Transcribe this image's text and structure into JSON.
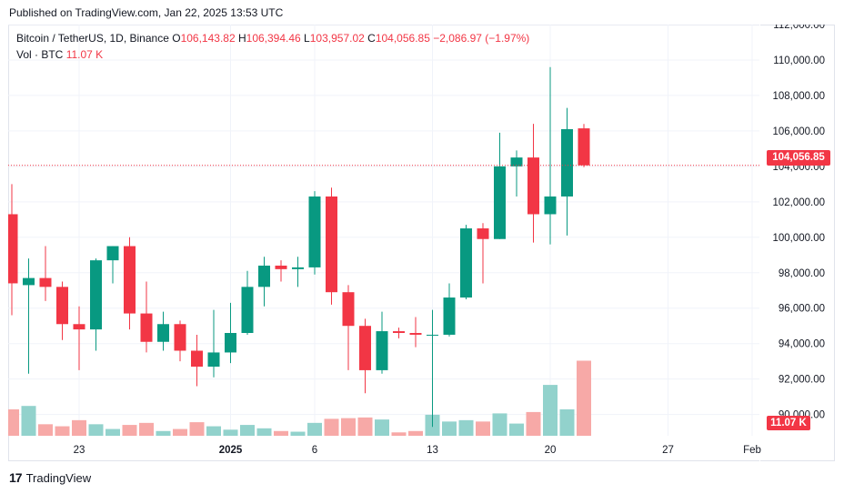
{
  "published": "Published on TradingView.com, Jan 22, 2025 13:53 UTC",
  "legend": {
    "symbol": "Bitcoin / TetherUS, 1D, Binance",
    "o_label": "O",
    "o": "106,143.82",
    "h_label": "H",
    "h": "106,394.46",
    "l_label": "L",
    "l": "103,957.02",
    "c_label": "C",
    "c": "104,056.85",
    "change": "−2,086.97 (−1.97%)"
  },
  "volume_line": {
    "label": "Vol · BTC",
    "value": "11.07 K"
  },
  "footer": {
    "brand": "TradingView",
    "mark": "17"
  },
  "colors": {
    "up": "#089981",
    "down": "#f23645",
    "up_vol": "#92d2cc",
    "down_vol": "#f7a9a7",
    "grid": "#f0f3fa"
  },
  "chart_data": {
    "type": "candlestick",
    "symbol": "Bitcoin / TetherUS, 1D, Binance",
    "current_price": 104056.85,
    "current_price_label": "104,056.85",
    "current_volume_label": "11.07 K",
    "ylim": [
      88800,
      112000
    ],
    "y_ticks": [
      90000,
      92000,
      94000,
      96000,
      98000,
      100000,
      102000,
      104000,
      106000,
      108000,
      110000,
      112000
    ],
    "y_tick_labels": [
      "90,000.00",
      "92,000.00",
      "94,000.00",
      "96,000.00",
      "98,000.00",
      "100,000.00",
      "102,000.00",
      "104,000.00",
      "106,000.00",
      "108,000.00",
      "110,000.00",
      "112,000.00"
    ],
    "x_ticks": [
      {
        "label": "23",
        "index": 4
      },
      {
        "label": "2025",
        "index": 13
      },
      {
        "label": "6",
        "index": 18
      },
      {
        "label": "13",
        "index": 25
      },
      {
        "label": "20",
        "index": 32
      },
      {
        "label": "27",
        "index": 39
      },
      {
        "label": "Feb",
        "index": 44
      }
    ],
    "x_tick_labels": [
      "23",
      "2025",
      "6",
      "13",
      "20",
      "27",
      "Feb"
    ],
    "grid": true,
    "volume_max": 11000,
    "candles": [
      {
        "o": 101300,
        "h": 103000,
        "l": 95600,
        "c": 97400,
        "v": 3900
      },
      {
        "o": 97300,
        "h": 98800,
        "l": 92300,
        "c": 97700,
        "v": 4400
      },
      {
        "o": 97700,
        "h": 99500,
        "l": 96400,
        "c": 97200,
        "v": 1700
      },
      {
        "o": 97200,
        "h": 97500,
        "l": 94200,
        "c": 95100,
        "v": 1400
      },
      {
        "o": 95100,
        "h": 96100,
        "l": 92500,
        "c": 94800,
        "v": 2300
      },
      {
        "o": 94800,
        "h": 98800,
        "l": 93600,
        "c": 98700,
        "v": 1700
      },
      {
        "o": 98700,
        "h": 99500,
        "l": 97400,
        "c": 99500,
        "v": 1000
      },
      {
        "o": 99500,
        "h": 100000,
        "l": 94800,
        "c": 95700,
        "v": 1600
      },
      {
        "o": 95700,
        "h": 97500,
        "l": 93500,
        "c": 94100,
        "v": 1900
      },
      {
        "o": 94100,
        "h": 95800,
        "l": 93600,
        "c": 95100,
        "v": 700
      },
      {
        "o": 95100,
        "h": 95300,
        "l": 93000,
        "c": 93600,
        "v": 1000
      },
      {
        "o": 93600,
        "h": 94500,
        "l": 91600,
        "c": 92700,
        "v": 2000
      },
      {
        "o": 92700,
        "h": 95900,
        "l": 92100,
        "c": 93500,
        "v": 1400
      },
      {
        "o": 93500,
        "h": 96300,
        "l": 92900,
        "c": 94600,
        "v": 900
      },
      {
        "o": 94600,
        "h": 98100,
        "l": 94500,
        "c": 97200,
        "v": 1600
      },
      {
        "o": 97200,
        "h": 98900,
        "l": 96100,
        "c": 98400,
        "v": 1100
      },
      {
        "o": 98400,
        "h": 98700,
        "l": 97500,
        "c": 98200,
        "v": 700
      },
      {
        "o": 98200,
        "h": 98900,
        "l": 97200,
        "c": 98300,
        "v": 600
      },
      {
        "o": 98300,
        "h": 102600,
        "l": 97900,
        "c": 102300,
        "v": 1900
      },
      {
        "o": 102300,
        "h": 102800,
        "l": 96200,
        "c": 96900,
        "v": 2500
      },
      {
        "o": 96900,
        "h": 97300,
        "l": 92500,
        "c": 95000,
        "v": 2600
      },
      {
        "o": 95000,
        "h": 95400,
        "l": 91200,
        "c": 92500,
        "v": 2700
      },
      {
        "o": 92500,
        "h": 95800,
        "l": 92300,
        "c": 94700,
        "v": 2400
      },
      {
        "o": 94700,
        "h": 94900,
        "l": 94300,
        "c": 94600,
        "v": 500
      },
      {
        "o": 94600,
        "h": 95500,
        "l": 93800,
        "c": 94500,
        "v": 700
      },
      {
        "o": 94500,
        "h": 95900,
        "l": 89300,
        "c": 94500,
        "v": 3100
      },
      {
        "o": 94500,
        "h": 97400,
        "l": 94400,
        "c": 96600,
        "v": 2100
      },
      {
        "o": 96600,
        "h": 100700,
        "l": 96500,
        "c": 100500,
        "v": 2300
      },
      {
        "o": 100500,
        "h": 100800,
        "l": 97400,
        "c": 99900,
        "v": 2100
      },
      {
        "o": 99900,
        "h": 105900,
        "l": 99900,
        "c": 104000,
        "v": 3300
      },
      {
        "o": 104000,
        "h": 104900,
        "l": 102300,
        "c": 104500,
        "v": 1800
      },
      {
        "o": 104500,
        "h": 106400,
        "l": 99700,
        "c": 101300,
        "v": 3500
      },
      {
        "o": 101300,
        "h": 109600,
        "l": 99600,
        "c": 102300,
        "v": 7500
      },
      {
        "o": 102300,
        "h": 107300,
        "l": 100100,
        "c": 106100,
        "v": 3900
      },
      {
        "o": 106143.82,
        "h": 106394.46,
        "l": 103957.02,
        "c": 104056.85,
        "v": 11070
      }
    ]
  }
}
